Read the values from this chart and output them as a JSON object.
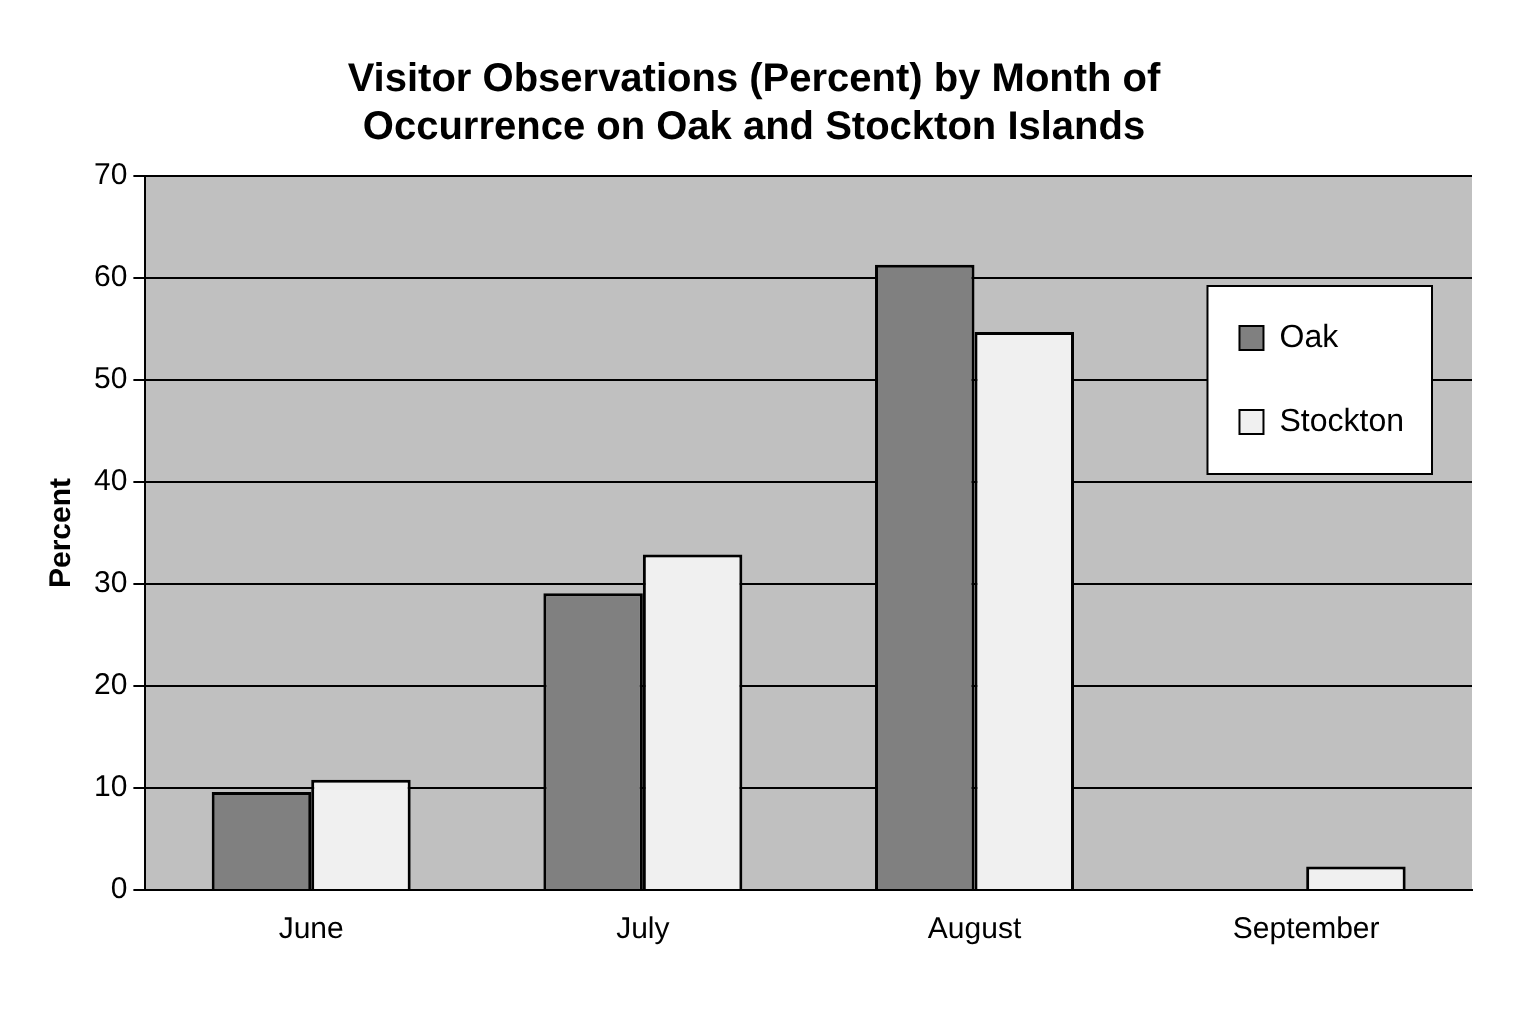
{
  "chart_data": {
    "type": "bar",
    "title": "Visitor Observations (Percent) by Month of Occurrence on Oak and Stockton Islands",
    "ylabel": "Percent",
    "categories": [
      "June",
      "July",
      "August",
      "September"
    ],
    "series": [
      {
        "name": "Oak",
        "color": "#808080",
        "values": [
          9.6,
          29.1,
          61.3,
          0
        ]
      },
      {
        "name": "Stockton",
        "color": "#f0f0f0",
        "values": [
          10.8,
          32.9,
          54.7,
          2.3
        ]
      }
    ],
    "ylim": [
      0,
      70
    ],
    "yticks": [
      0,
      10,
      20,
      30,
      40,
      50,
      60,
      70
    ],
    "grid": "y",
    "legend": "top right"
  }
}
